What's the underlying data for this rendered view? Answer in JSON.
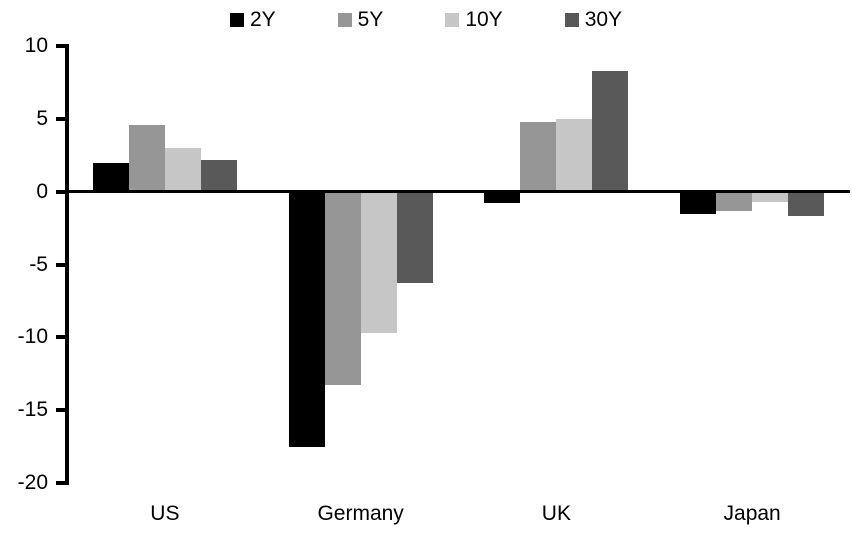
{
  "chart_data": {
    "type": "bar",
    "title": "",
    "xlabel": "",
    "ylabel": "",
    "categories": [
      "US",
      "Germany",
      "UK",
      "Japan"
    ],
    "series": [
      {
        "name": "2Y",
        "color": "#000000",
        "values": [
          2.0,
          -17.5,
          -0.8,
          -1.5
        ]
      },
      {
        "name": "5Y",
        "color": "#969696",
        "values": [
          4.6,
          -13.3,
          4.8,
          -1.3
        ]
      },
      {
        "name": "10Y",
        "color": "#c6c6c6",
        "values": [
          3.0,
          -9.7,
          5.0,
          -0.7
        ]
      },
      {
        "name": "30Y",
        "color": "#595959",
        "values": [
          2.2,
          -6.3,
          8.3,
          -1.7
        ]
      }
    ],
    "ylim": [
      -20,
      10
    ],
    "yticks": [
      10,
      5,
      0,
      -5,
      -10,
      -15,
      -20
    ],
    "grid": false,
    "legend_position": "top-center",
    "axis_color": "#000000",
    "background_color": "#ffffff"
  }
}
